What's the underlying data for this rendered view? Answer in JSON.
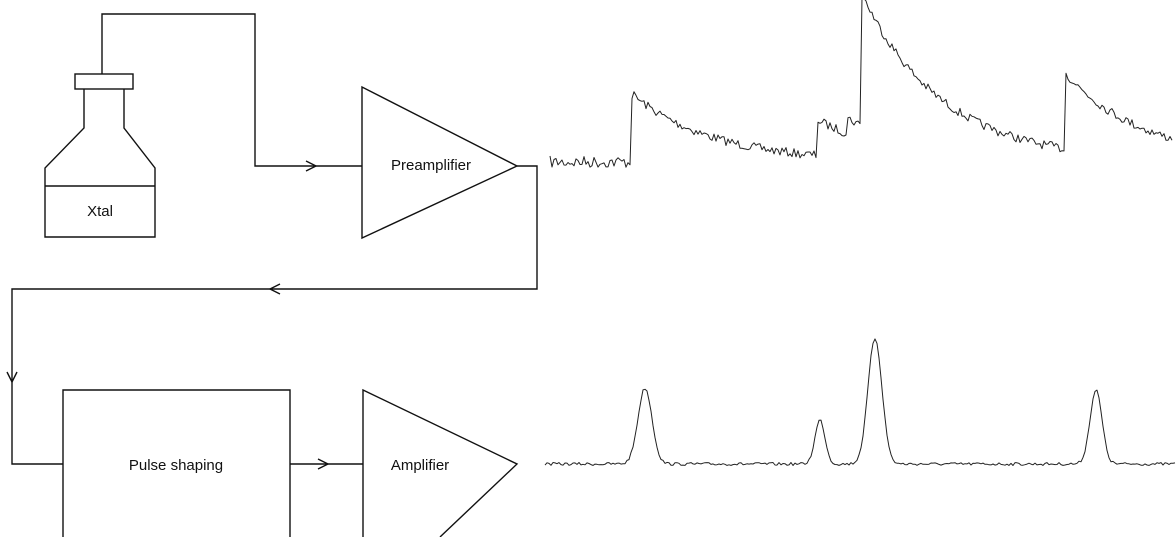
{
  "nodes": [
    {
      "label": "Xtal"
    },
    {
      "label": "Preamplifier"
    },
    {
      "label": "Pulse shaping"
    },
    {
      "label": "Amplifier"
    }
  ]
}
